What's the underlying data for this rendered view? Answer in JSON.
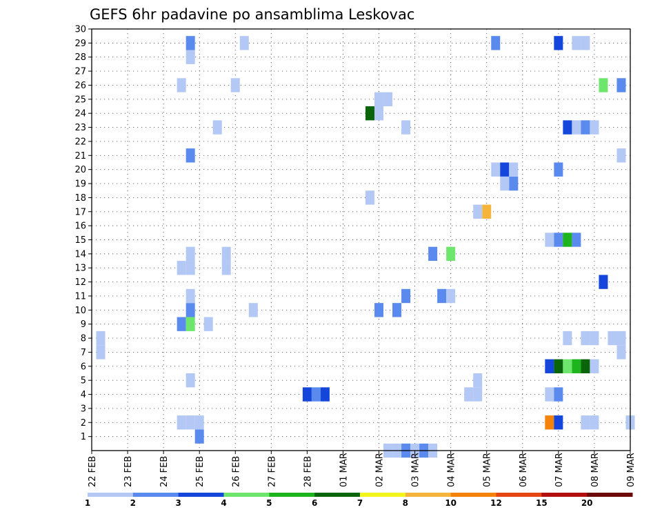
{
  "chart_data": {
    "type": "heatmap",
    "title": "GEFS 6hr padavine po ansamblima Leskovac",
    "xlabel": "",
    "ylabel": "",
    "x_ticks": [
      "22 FEB",
      "23 FEB",
      "24 FEB",
      "25 FEB",
      "26 FEB",
      "27 FEB",
      "28 FEB",
      "01 MAR",
      "02 MAR",
      "03 MAR",
      "04 MAR",
      "05 MAR",
      "06 MAR",
      "07 MAR",
      "08 MAR",
      "09 MAR"
    ],
    "y_ticks": [
      "1",
      "2",
      "3",
      "4",
      "5",
      "6",
      "7",
      "8",
      "9",
      "10",
      "11",
      "12",
      "13",
      "14",
      "15",
      "16",
      "17",
      "18",
      "19",
      "20",
      "21",
      "22",
      "23",
      "24",
      "25",
      "26",
      "27",
      "28",
      "29",
      "30"
    ],
    "x_range_days": [
      0,
      15
    ],
    "y_range_members": [
      0,
      30
    ],
    "time_step_hours": 6,
    "legend": {
      "labels": [
        "1",
        "2",
        "3",
        "4",
        "5",
        "6",
        "7",
        "8",
        "10",
        "12",
        "15",
        "20"
      ],
      "colors": [
        "#b4c8f5",
        "#5a8aed",
        "#1446dc",
        "#6ee66e",
        "#1eb41e",
        "#0a640a",
        "#f5f51e",
        "#f5b43c",
        "#f5820a",
        "#e64614",
        "#b40f0f",
        "#6e0a0a"
      ]
    },
    "cells": [
      {
        "d": 0.25,
        "m": 7,
        "c": 0
      },
      {
        "d": 0.25,
        "m": 8,
        "c": 0
      },
      {
        "d": 2.5,
        "m": 2,
        "c": 0
      },
      {
        "d": 2.5,
        "m": 9,
        "c": 1
      },
      {
        "d": 2.5,
        "m": 13,
        "c": 0
      },
      {
        "d": 2.5,
        "m": 26,
        "c": 0
      },
      {
        "d": 2.75,
        "m": 2,
        "c": 0
      },
      {
        "d": 2.75,
        "m": 5,
        "c": 0
      },
      {
        "d": 2.75,
        "m": 9,
        "c": 3
      },
      {
        "d": 2.75,
        "m": 10,
        "c": 1
      },
      {
        "d": 2.75,
        "m": 11,
        "c": 0
      },
      {
        "d": 2.75,
        "m": 13,
        "c": 0
      },
      {
        "d": 2.75,
        "m": 14,
        "c": 0
      },
      {
        "d": 2.75,
        "m": 21,
        "c": 1
      },
      {
        "d": 2.75,
        "m": 28,
        "c": 0
      },
      {
        "d": 2.75,
        "m": 29,
        "c": 1
      },
      {
        "d": 3.0,
        "m": 1,
        "c": 1
      },
      {
        "d": 3.0,
        "m": 2,
        "c": 0
      },
      {
        "d": 3.25,
        "m": 9,
        "c": 0
      },
      {
        "d": 3.5,
        "m": 23,
        "c": 0
      },
      {
        "d": 3.75,
        "m": 13,
        "c": 0
      },
      {
        "d": 3.75,
        "m": 14,
        "c": 0
      },
      {
        "d": 4.0,
        "m": 26,
        "c": 0
      },
      {
        "d": 4.25,
        "m": 29,
        "c": 0
      },
      {
        "d": 4.5,
        "m": 10,
        "c": 0
      },
      {
        "d": 6.0,
        "m": 4,
        "c": 2
      },
      {
        "d": 6.25,
        "m": 4,
        "c": 1
      },
      {
        "d": 6.5,
        "m": 4,
        "c": 2
      },
      {
        "d": 7.75,
        "m": 18,
        "c": 0
      },
      {
        "d": 7.75,
        "m": 24,
        "c": 5
      },
      {
        "d": 8.0,
        "m": 10,
        "c": 1
      },
      {
        "d": 8.0,
        "m": 24,
        "c": 0
      },
      {
        "d": 8.0,
        "m": 25,
        "c": 0
      },
      {
        "d": 8.25,
        "m": 25,
        "c": 0
      },
      {
        "d": 8.25,
        "m": 0,
        "c": 0
      },
      {
        "d": 8.5,
        "m": 0,
        "c": 0
      },
      {
        "d": 8.5,
        "m": 10,
        "c": 1
      },
      {
        "d": 8.75,
        "m": 0,
        "c": 1
      },
      {
        "d": 8.75,
        "m": 11,
        "c": 1
      },
      {
        "d": 8.75,
        "m": 23,
        "c": 0
      },
      {
        "d": 9.0,
        "m": 0,
        "c": 0
      },
      {
        "d": 9.25,
        "m": 0,
        "c": 1
      },
      {
        "d": 9.5,
        "m": 0,
        "c": 0
      },
      {
        "d": 9.5,
        "m": 14,
        "c": 1
      },
      {
        "d": 9.75,
        "m": 11,
        "c": 1
      },
      {
        "d": 10.0,
        "m": 11,
        "c": 0
      },
      {
        "d": 10.0,
        "m": 14,
        "c": 3
      },
      {
        "d": 10.5,
        "m": 4,
        "c": 0
      },
      {
        "d": 10.75,
        "m": 4,
        "c": 0
      },
      {
        "d": 10.75,
        "m": 5,
        "c": 0
      },
      {
        "d": 10.75,
        "m": 17,
        "c": 0
      },
      {
        "d": 11.0,
        "m": 17,
        "c": 7
      },
      {
        "d": 11.25,
        "m": 20,
        "c": 0
      },
      {
        "d": 11.25,
        "m": 29,
        "c": 1
      },
      {
        "d": 11.5,
        "m": 19,
        "c": 0
      },
      {
        "d": 11.5,
        "m": 20,
        "c": 2
      },
      {
        "d": 11.75,
        "m": 19,
        "c": 1
      },
      {
        "d": 11.75,
        "m": 20,
        "c": 0
      },
      {
        "d": 12.75,
        "m": 2,
        "c": 8
      },
      {
        "d": 12.75,
        "m": 4,
        "c": 0
      },
      {
        "d": 12.75,
        "m": 6,
        "c": 2
      },
      {
        "d": 12.75,
        "m": 15,
        "c": 0
      },
      {
        "d": 13.0,
        "m": 2,
        "c": 2
      },
      {
        "d": 13.0,
        "m": 4,
        "c": 1
      },
      {
        "d": 13.0,
        "m": 6,
        "c": 5
      },
      {
        "d": 13.0,
        "m": 15,
        "c": 1
      },
      {
        "d": 13.0,
        "m": 20,
        "c": 1
      },
      {
        "d": 13.0,
        "m": 29,
        "c": 2
      },
      {
        "d": 13.25,
        "m": 6,
        "c": 3
      },
      {
        "d": 13.25,
        "m": 8,
        "c": 0
      },
      {
        "d": 13.25,
        "m": 15,
        "c": 4
      },
      {
        "d": 13.25,
        "m": 23,
        "c": 2
      },
      {
        "d": 13.5,
        "m": 6,
        "c": 4
      },
      {
        "d": 13.5,
        "m": 15,
        "c": 1
      },
      {
        "d": 13.5,
        "m": 23,
        "c": 0
      },
      {
        "d": 13.5,
        "m": 29,
        "c": 0
      },
      {
        "d": 13.75,
        "m": 2,
        "c": 0
      },
      {
        "d": 13.75,
        "m": 6,
        "c": 5
      },
      {
        "d": 13.75,
        "m": 8,
        "c": 0
      },
      {
        "d": 13.75,
        "m": 23,
        "c": 1
      },
      {
        "d": 13.75,
        "m": 29,
        "c": 0
      },
      {
        "d": 14.0,
        "m": 2,
        "c": 0
      },
      {
        "d": 14.0,
        "m": 6,
        "c": 0
      },
      {
        "d": 14.0,
        "m": 8,
        "c": 0
      },
      {
        "d": 14.0,
        "m": 23,
        "c": 0
      },
      {
        "d": 14.25,
        "m": 12,
        "c": 2
      },
      {
        "d": 14.25,
        "m": 26,
        "c": 3
      },
      {
        "d": 14.5,
        "m": 8,
        "c": 0
      },
      {
        "d": 14.75,
        "m": 7,
        "c": 0
      },
      {
        "d": 14.75,
        "m": 8,
        "c": 0
      },
      {
        "d": 14.75,
        "m": 21,
        "c": 0
      },
      {
        "d": 14.75,
        "m": 26,
        "c": 1
      },
      {
        "d": 15.0,
        "m": 2,
        "c": 0
      }
    ]
  }
}
